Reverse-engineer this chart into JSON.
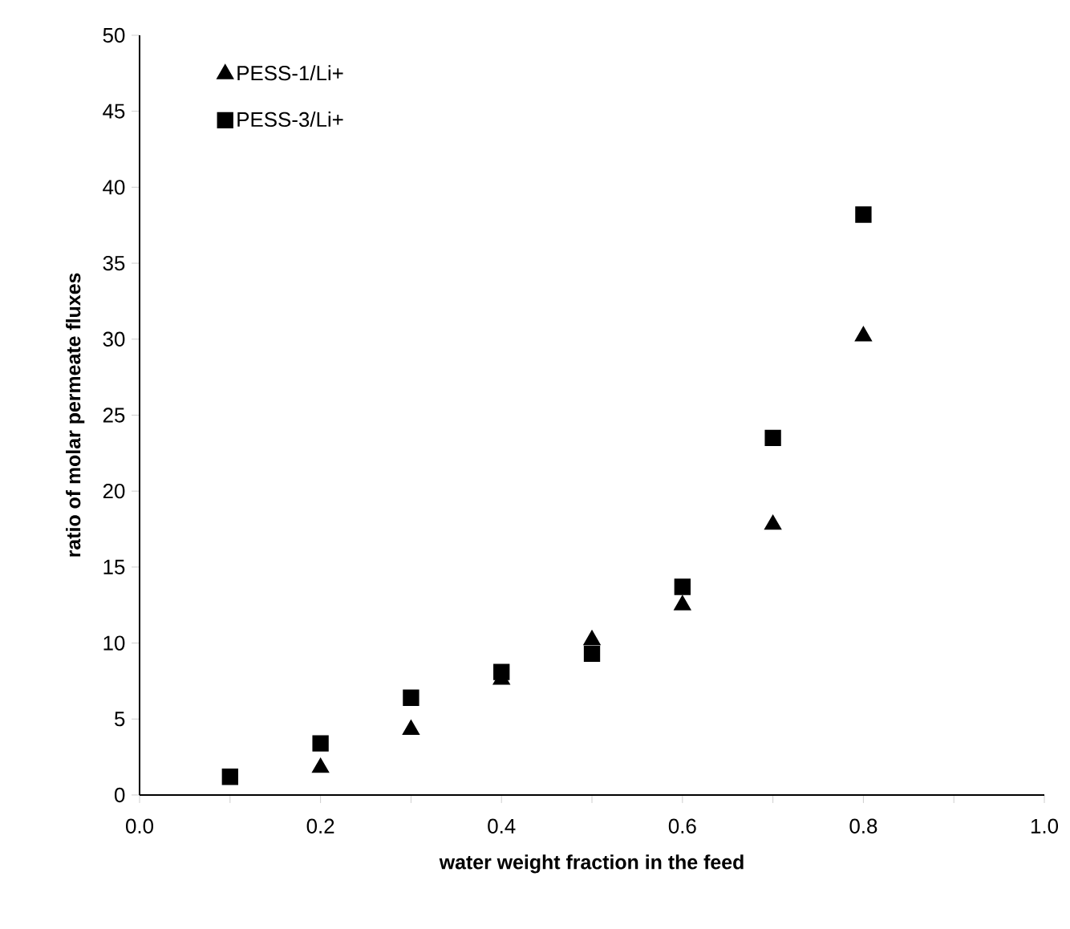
{
  "chart_data": {
    "type": "scatter",
    "xlabel": "water weight fraction in the feed",
    "ylabel": "ratio of molar permeate fluxes",
    "series": [
      {
        "name": "PESS-1/Li+",
        "color": "#000000",
        "marker": "triangle",
        "x": [
          0.2,
          0.3,
          0.4,
          0.5,
          0.6,
          0.7,
          0.8
        ],
        "values": [
          1.8,
          4.3,
          7.6,
          10.2,
          12.5,
          17.8,
          30.2
        ]
      },
      {
        "name": "PESS-3/Li+",
        "color": "#000000",
        "marker": "square",
        "x": [
          0.1,
          0.2,
          0.3,
          0.4,
          0.5,
          0.6,
          0.7,
          0.8
        ],
        "values": [
          1.2,
          3.4,
          6.4,
          8.1,
          9.3,
          13.7,
          23.5,
          38.2
        ]
      }
    ],
    "xlim": [
      0,
      1
    ],
    "ylim": [
      0,
      50
    ],
    "xticks": [
      {
        "value": 0,
        "label": "0.0"
      },
      {
        "value": 0.1,
        "label": null
      },
      {
        "value": 0.2,
        "label": "0.2"
      },
      {
        "value": 0.3,
        "label": null
      },
      {
        "value": 0.4,
        "label": "0.4"
      },
      {
        "value": 0.5,
        "label": null
      },
      {
        "value": 0.6,
        "label": "0.6"
      },
      {
        "value": 0.7,
        "label": null
      },
      {
        "value": 0.8,
        "label": "0.8"
      },
      {
        "value": 0.9,
        "label": null
      },
      {
        "value": 1,
        "label": "1.0"
      }
    ],
    "yticks": [
      0,
      5,
      10,
      15,
      20,
      25,
      30,
      35,
      40,
      45,
      50
    ],
    "grid": false,
    "legend": "top left"
  }
}
